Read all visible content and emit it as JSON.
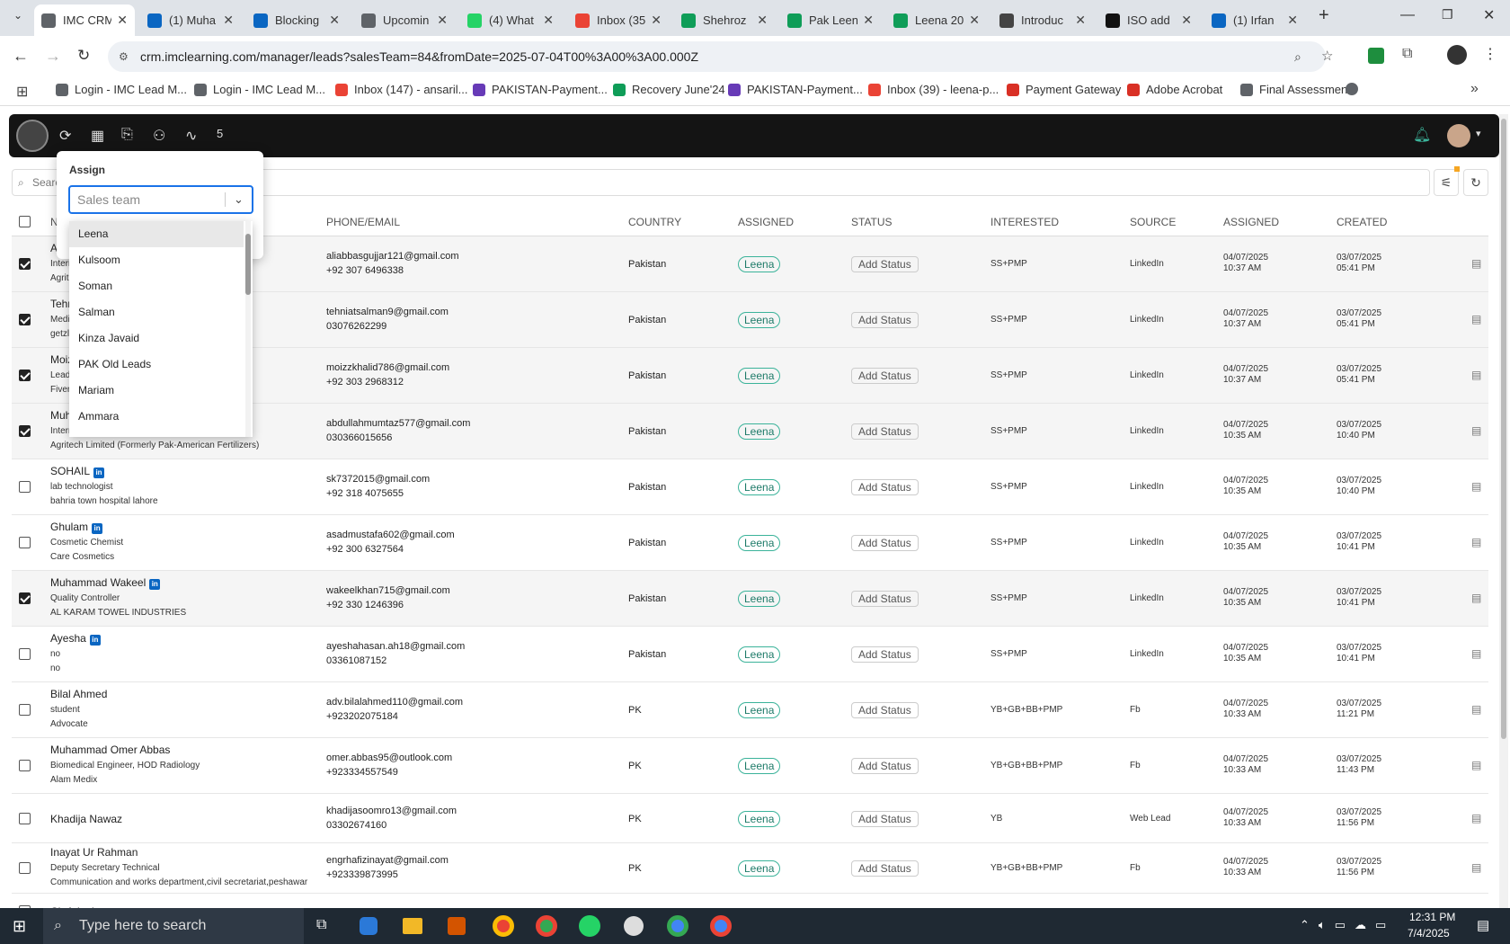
{
  "browser": {
    "tabs": [
      {
        "label": "IMC CRM",
        "color": "#5f6368"
      },
      {
        "label": "(1) Muha",
        "color": "#0a66c2"
      },
      {
        "label": "Blocking",
        "color": "#0a66c2"
      },
      {
        "label": "Upcomin",
        "color": "#5f6368"
      },
      {
        "label": "(4) What",
        "color": "#25d366"
      },
      {
        "label": "Inbox (35",
        "color": "#ea4335"
      },
      {
        "label": "Shehroz",
        "color": "#0f9d58"
      },
      {
        "label": "Pak Leen",
        "color": "#0f9d58"
      },
      {
        "label": "Leena 20",
        "color": "#0f9d58"
      },
      {
        "label": "Introduc",
        "color": "#444"
      },
      {
        "label": "ISO add",
        "color": "#111"
      },
      {
        "label": "(1) Irfan",
        "color": "#0a66c2"
      }
    ],
    "url": "crm.imclearning.com/manager/leads?salesTeam=84&fromDate=2025-07-04T00%3A00%3A00.000Z",
    "bookmarks": [
      {
        "label": "Login - IMC Lead M...",
        "color": "#5f6368"
      },
      {
        "label": "Login - IMC Lead M...",
        "color": "#5f6368"
      },
      {
        "label": "Inbox (147) - ansaril...",
        "color": "#ea4335"
      },
      {
        "label": "PAKISTAN-Payment...",
        "color": "#673ab7"
      },
      {
        "label": "Recovery June'24",
        "color": "#0f9d58"
      },
      {
        "label": "PAKISTAN-Payment...",
        "color": "#673ab7"
      },
      {
        "label": "Inbox (39) - leena-p...",
        "color": "#ea4335"
      },
      {
        "label": "Payment Gateway",
        "color": "#d93025"
      },
      {
        "label": "Adobe Acrobat",
        "color": "#d93025"
      },
      {
        "label": "Final Assessment",
        "color": "#5f6368"
      }
    ]
  },
  "app": {
    "badge_count": "5",
    "search_placeholder": "Search"
  },
  "assign": {
    "title": "Assign",
    "placeholder": "Sales team",
    "options": [
      "Leena",
      "Kulsoom",
      "Soman",
      "Salman",
      "Kinza Javaid",
      "PAK Old Leads",
      "Mariam",
      "Ammara"
    ]
  },
  "table": {
    "headers": {
      "name": "N",
      "phone": "PHONE/EMAIL",
      "country": "COUNTRY",
      "assigned": "ASSIGNED",
      "status": "STATUS",
      "interested": "INTERESTED",
      "source": "SOURCE",
      "assigned2": "ASSIGNED",
      "created": "CREATED"
    },
    "rows": [
      {
        "checked": true,
        "name": "A",
        "l1": "Intern",
        "l2": "Agrit",
        "email": "aliabbasgujjar121@gmail.com",
        "phone": "+92 307 6496338",
        "country": "Pakistan",
        "assigned": "Leena",
        "status": "Add Status",
        "interested": "SS+PMP",
        "source": "LinkedIn",
        "ad": "04/07/2025",
        "at": "10:37 AM",
        "cd": "03/07/2025",
        "ct": "05:41 PM"
      },
      {
        "checked": true,
        "name": "Tehr",
        "l1": "Medi",
        "l2": "getzl",
        "email": "tehniatsalman9@gmail.com",
        "phone": "03076262299",
        "country": "Pakistan",
        "assigned": "Leena",
        "status": "Add Status",
        "interested": "SS+PMP",
        "source": "LinkedIn",
        "ad": "04/07/2025",
        "at": "10:37 AM",
        "cd": "03/07/2025",
        "ct": "05:41 PM"
      },
      {
        "checked": true,
        "name": "Moiz",
        "l1": "Lead",
        "l2": "Fiverr",
        "email": "moizzkhalid786@gmail.com",
        "phone": "+92 303 2968312",
        "country": "Pakistan",
        "assigned": "Leena",
        "status": "Add Status",
        "interested": "SS+PMP",
        "source": "LinkedIn",
        "ad": "04/07/2025",
        "at": "10:37 AM",
        "cd": "03/07/2025",
        "ct": "05:41 PM"
      },
      {
        "checked": true,
        "name": "Muh",
        "l1": "Intern",
        "l2": "Agritech Limited (Formerly Pak-American Fertilizers)",
        "email": "abdullahmumtaz577@gmail.com",
        "phone": "030366015656",
        "country": "Pakistan",
        "assigned": "Leena",
        "status": "Add Status",
        "interested": "SS+PMP",
        "source": "LinkedIn",
        "ad": "04/07/2025",
        "at": "10:35 AM",
        "cd": "03/07/2025",
        "ct": "10:40 PM"
      },
      {
        "checked": false,
        "name": "SOHAIL",
        "li": true,
        "l1": "lab technologist",
        "l2": "bahria town hospital lahore",
        "email": "sk7372015@gmail.com",
        "phone": "+92 318 4075655",
        "country": "Pakistan",
        "assigned": "Leena",
        "status": "Add Status",
        "interested": "SS+PMP",
        "source": "LinkedIn",
        "ad": "04/07/2025",
        "at": "10:35 AM",
        "cd": "03/07/2025",
        "ct": "10:40 PM"
      },
      {
        "checked": false,
        "name": "Ghulam",
        "li": true,
        "l1": "Cosmetic Chemist",
        "l2": "Care Cosmetics",
        "email": "asadmustafa602@gmail.com",
        "phone": "+92 300 6327564",
        "country": "Pakistan",
        "assigned": "Leena",
        "status": "Add Status",
        "interested": "SS+PMP",
        "source": "LinkedIn",
        "ad": "04/07/2025",
        "at": "10:35 AM",
        "cd": "03/07/2025",
        "ct": "10:41 PM"
      },
      {
        "checked": true,
        "name": "Muhammad Wakeel",
        "li": true,
        "l1": "Quality Controller",
        "l2": "AL KARAM TOWEL INDUSTRIES",
        "email": "wakeelkhan715@gmail.com",
        "phone": "+92 330 1246396",
        "country": "Pakistan",
        "assigned": "Leena",
        "status": "Add Status",
        "interested": "SS+PMP",
        "source": "LinkedIn",
        "ad": "04/07/2025",
        "at": "10:35 AM",
        "cd": "03/07/2025",
        "ct": "10:41 PM"
      },
      {
        "checked": false,
        "name": "Ayesha",
        "li": true,
        "l1": "no",
        "l2": "no",
        "email": "ayeshahasan.ah18@gmail.com",
        "phone": "03361087152",
        "country": "Pakistan",
        "assigned": "Leena",
        "status": "Add Status",
        "interested": "SS+PMP",
        "source": "LinkedIn",
        "ad": "04/07/2025",
        "at": "10:35 AM",
        "cd": "03/07/2025",
        "ct": "10:41 PM"
      },
      {
        "checked": false,
        "name": "Bilal Ahmed",
        "l1": "student",
        "l2": "Advocate",
        "email": "adv.bilalahmed110@gmail.com",
        "phone": "+923202075184",
        "country": "PK",
        "assigned": "Leena",
        "status": "Add Status",
        "interested": "YB+GB+BB+PMP",
        "source": "Fb",
        "ad": "04/07/2025",
        "at": "10:33 AM",
        "cd": "03/07/2025",
        "ct": "11:21 PM"
      },
      {
        "checked": false,
        "name": "Muhammad Omer Abbas",
        "l1": "Biomedical Engineer, HOD Radiology",
        "l2": "Alam Medix",
        "email": "omer.abbas95@outlook.com",
        "phone": "+923334557549",
        "country": "PK",
        "assigned": "Leena",
        "status": "Add Status",
        "interested": "YB+GB+BB+PMP",
        "source": "Fb",
        "ad": "04/07/2025",
        "at": "10:33 AM",
        "cd": "03/07/2025",
        "ct": "11:43 PM"
      },
      {
        "checked": false,
        "name": "Khadija Nawaz",
        "l1": "",
        "l2": "",
        "email": "khadijasoomro13@gmail.com",
        "phone": "03302674160",
        "country": "PK",
        "assigned": "Leena",
        "status": "Add Status",
        "interested": "YB",
        "source": "Web Lead",
        "ad": "04/07/2025",
        "at": "10:33 AM",
        "cd": "03/07/2025",
        "ct": "11:56 PM"
      },
      {
        "checked": false,
        "name": "Inayat Ur Rahman",
        "l1": "Deputy Secretary Technical",
        "l2": "Communication and works department,civil secretariat,peshawar",
        "email": "engrhafizinayat@gmail.com",
        "phone": "+923339873995",
        "country": "PK",
        "assigned": "Leena",
        "status": "Add Status",
        "interested": "YB+GB+BB+PMP",
        "source": "Fb",
        "ad": "04/07/2025",
        "at": "10:33 AM",
        "cd": "03/07/2025",
        "ct": "11:56 PM"
      },
      {
        "checked": false,
        "name": "Ch Adeel",
        "l1": "",
        "l2": "",
        "email": "",
        "phone": "",
        "country": "",
        "assigned": "",
        "status": "",
        "interested": "",
        "source": "",
        "ad": "",
        "at": "",
        "cd": "",
        "ct": ""
      }
    ]
  },
  "taskbar": {
    "search_placeholder": "Type here to search",
    "time": "12:31 PM",
    "date": "7/4/2025"
  }
}
